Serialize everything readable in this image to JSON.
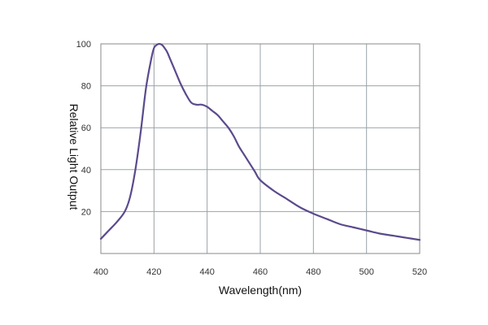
{
  "chart_data": {
    "type": "line",
    "title": "",
    "xlabel": "Wavelength(nm)",
    "ylabel": "Relative Light Output",
    "xlim": [
      400,
      520
    ],
    "ylim": [
      0,
      100
    ],
    "x_ticks": [
      400,
      420,
      440,
      460,
      480,
      500,
      520
    ],
    "x_tick_labels": [
      "400",
      "420",
      "440",
      "460",
      "480",
      "500",
      "520"
    ],
    "y_ticks": [
      20,
      40,
      60,
      80,
      100
    ],
    "y_tick_labels": [
      "20",
      "40",
      "60",
      "80",
      "100"
    ],
    "grid": true,
    "colors": {
      "line": "#5b4a8c",
      "grid": "#9aa3a8",
      "frame": "#8a8a8a"
    },
    "series": [
      {
        "x": [
          400,
          403,
          406,
          409,
          411,
          413,
          415,
          417,
          419,
          420,
          421,
          422,
          423,
          424,
          425,
          426,
          428,
          430,
          432,
          434,
          436,
          438,
          440,
          442,
          444,
          446,
          448,
          450,
          452,
          454,
          456,
          458,
          460,
          465,
          470,
          475,
          480,
          485,
          490,
          495,
          500,
          505,
          510,
          515,
          520
        ],
        "y": [
          7,
          11,
          15,
          20,
          27,
          40,
          58,
          79,
          93,
          98,
          99.5,
          100,
          99.5,
          98,
          96,
          93,
          87,
          81,
          76,
          72,
          71,
          71,
          70,
          68,
          66,
          63,
          60,
          56,
          51,
          47,
          43,
          39,
          35,
          30,
          26,
          22,
          19,
          16.5,
          14,
          12.5,
          11,
          9.5,
          8.5,
          7.5,
          6.5
        ]
      }
    ]
  }
}
